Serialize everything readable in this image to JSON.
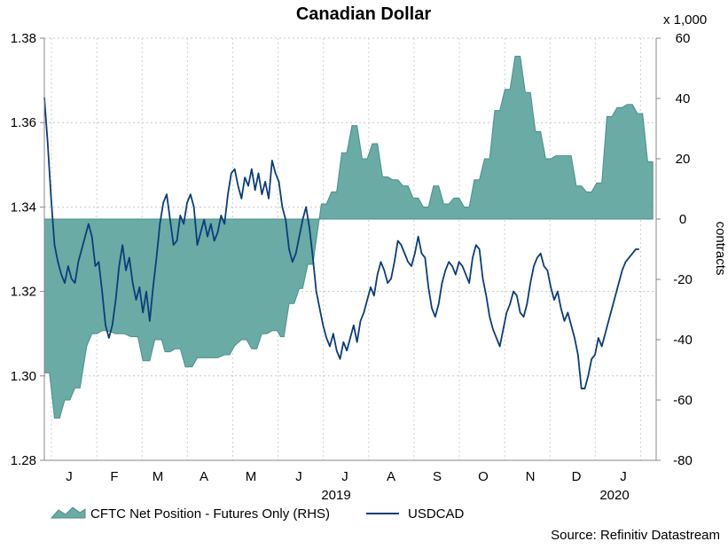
{
  "chart_data": {
    "type": "line+area",
    "title": "Canadian Dollar",
    "left_axis": {
      "ylim": [
        1.28,
        1.38
      ],
      "ticks": [
        "1.38",
        "1.36",
        "1.34",
        "1.32",
        "1.30",
        "1.28"
      ],
      "tick_values": [
        1.38,
        1.36,
        1.34,
        1.32,
        1.3,
        1.28
      ]
    },
    "right_axis": {
      "ylim": [
        -80,
        60
      ],
      "ticks": [
        "60",
        "40",
        "20",
        "0",
        "-20",
        "-40",
        "-60",
        "-80"
      ],
      "tick_values": [
        60,
        40,
        20,
        0,
        -20,
        -40,
        -60,
        -80
      ],
      "label": "contracts",
      "multiplier_label": "x 1,000"
    },
    "x_axis": {
      "months": [
        "J",
        "F",
        "M",
        "A",
        "M",
        "J",
        "J",
        "A",
        "S",
        "O",
        "N",
        "D",
        "J"
      ],
      "year_labels": [
        {
          "text": "2019",
          "under_month": 6
        },
        {
          "text": "2020",
          "under_month": 12
        }
      ],
      "range_months": [
        0,
        13
      ]
    },
    "grid": true,
    "series": [
      {
        "name": "CFTC Net Position - Futures Only (RHS)",
        "kind": "area",
        "axis": "right",
        "color": "#6aaba6",
        "edge_color": "#4a8f8a",
        "points": [
          [
            0,
            -51
          ],
          [
            0.15,
            -51
          ],
          [
            0.3,
            -66
          ],
          [
            0.45,
            -66
          ],
          [
            0.6,
            -60
          ],
          [
            0.75,
            -60
          ],
          [
            0.9,
            -56
          ],
          [
            1.05,
            -56
          ],
          [
            1.25,
            -42
          ],
          [
            1.4,
            -38
          ],
          [
            1.55,
            -38
          ],
          [
            1.7,
            -37
          ],
          [
            1.85,
            -37
          ],
          [
            2.1,
            -38
          ],
          [
            2.35,
            -38
          ],
          [
            2.55,
            -39
          ],
          [
            2.75,
            -39
          ],
          [
            2.9,
            -47
          ],
          [
            3.1,
            -47
          ],
          [
            3.25,
            -40
          ],
          [
            3.45,
            -40
          ],
          [
            3.55,
            -44
          ],
          [
            3.7,
            -44
          ],
          [
            3.85,
            -43
          ],
          [
            4.0,
            -43
          ],
          [
            4.15,
            -49
          ],
          [
            4.35,
            -49
          ],
          [
            4.5,
            -46
          ],
          [
            4.7,
            -46
          ],
          [
            4.9,
            -46
          ],
          [
            5.1,
            -46
          ],
          [
            5.3,
            -45
          ],
          [
            5.45,
            -45
          ],
          [
            5.6,
            -42
          ],
          [
            5.8,
            -40
          ],
          [
            5.95,
            -40
          ],
          [
            6.1,
            -43
          ],
          [
            6.25,
            -43
          ],
          [
            6.4,
            -38
          ],
          [
            6.55,
            -38
          ],
          [
            6.7,
            -37
          ],
          [
            6.85,
            -37
          ],
          [
            6.95,
            -39
          ],
          [
            7.05,
            -39
          ],
          [
            7.2,
            -28
          ],
          [
            7.35,
            -28
          ],
          [
            7.5,
            -23
          ],
          [
            7.6,
            -23
          ],
          [
            7.75,
            -15
          ],
          [
            7.9,
            -15
          ],
          [
            8.15,
            5
          ],
          [
            8.3,
            5
          ],
          [
            8.45,
            9
          ],
          [
            8.6,
            9
          ],
          [
            8.75,
            22
          ],
          [
            8.9,
            22
          ],
          [
            9.05,
            31
          ],
          [
            9.2,
            31
          ],
          [
            9.35,
            20
          ],
          [
            9.5,
            20
          ],
          [
            9.65,
            25
          ],
          [
            9.8,
            25
          ],
          [
            9.95,
            14
          ],
          [
            10.1,
            14
          ],
          [
            10.25,
            13
          ],
          [
            10.4,
            13
          ],
          [
            10.55,
            11
          ],
          [
            10.7,
            11
          ],
          [
            10.85,
            7
          ],
          [
            11.0,
            7
          ],
          [
            11.15,
            4
          ],
          [
            11.3,
            4
          ],
          [
            11.45,
            11
          ],
          [
            11.6,
            11
          ],
          [
            11.75,
            5
          ],
          [
            11.9,
            5
          ],
          [
            12.05,
            7
          ],
          [
            12.2,
            7
          ],
          [
            12.35,
            4
          ],
          [
            12.5,
            4
          ],
          [
            12.65,
            13
          ],
          [
            12.8,
            13
          ],
          [
            12.95,
            20
          ],
          [
            13.1,
            20
          ],
          [
            13.25,
            36
          ],
          [
            13.4,
            36
          ],
          [
            13.55,
            43
          ],
          [
            13.7,
            43
          ],
          [
            13.85,
            54
          ],
          [
            14.0,
            54
          ],
          [
            14.15,
            42
          ],
          [
            14.3,
            42
          ],
          [
            14.45,
            29
          ],
          [
            14.6,
            29
          ],
          [
            14.75,
            20
          ],
          [
            14.9,
            20
          ],
          [
            15.05,
            21
          ],
          [
            15.2,
            21
          ],
          [
            15.35,
            21
          ],
          [
            15.5,
            21
          ],
          [
            15.65,
            11
          ],
          [
            15.8,
            11
          ],
          [
            15.95,
            9
          ],
          [
            16.1,
            9
          ],
          [
            16.25,
            12
          ],
          [
            16.4,
            12
          ],
          [
            16.55,
            34
          ],
          [
            16.7,
            34
          ],
          [
            16.85,
            37
          ],
          [
            17.0,
            37
          ],
          [
            17.15,
            38
          ],
          [
            17.3,
            38
          ],
          [
            17.45,
            35
          ],
          [
            17.6,
            35
          ],
          [
            17.75,
            19
          ],
          [
            17.9,
            19
          ]
        ],
        "x_scale_note": "x in half-months from Jan 2019"
      },
      {
        "name": "USDCAD",
        "kind": "line",
        "axis": "left",
        "color": "#0b3d7a",
        "points": [
          [
            0,
            1.366
          ],
          [
            0.1,
            1.355
          ],
          [
            0.2,
            1.342
          ],
          [
            0.3,
            1.331
          ],
          [
            0.4,
            1.327
          ],
          [
            0.5,
            1.324
          ],
          [
            0.6,
            1.322
          ],
          [
            0.7,
            1.326
          ],
          [
            0.8,
            1.323
          ],
          [
            0.9,
            1.322
          ],
          [
            1.0,
            1.327
          ],
          [
            1.1,
            1.33
          ],
          [
            1.2,
            1.333
          ],
          [
            1.3,
            1.336
          ],
          [
            1.4,
            1.333
          ],
          [
            1.5,
            1.326
          ],
          [
            1.6,
            1.327
          ],
          [
            1.7,
            1.32
          ],
          [
            1.8,
            1.312
          ],
          [
            1.9,
            1.309
          ],
          [
            2.0,
            1.312
          ],
          [
            2.1,
            1.318
          ],
          [
            2.2,
            1.326
          ],
          [
            2.3,
            1.331
          ],
          [
            2.4,
            1.325
          ],
          [
            2.5,
            1.328
          ],
          [
            2.6,
            1.322
          ],
          [
            2.7,
            1.318
          ],
          [
            2.8,
            1.321
          ],
          [
            2.9,
            1.315
          ],
          [
            3.0,
            1.32
          ],
          [
            3.1,
            1.313
          ],
          [
            3.2,
            1.321
          ],
          [
            3.3,
            1.328
          ],
          [
            3.4,
            1.336
          ],
          [
            3.5,
            1.341
          ],
          [
            3.6,
            1.343
          ],
          [
            3.7,
            1.337
          ],
          [
            3.8,
            1.331
          ],
          [
            3.9,
            1.332
          ],
          [
            4.0,
            1.338
          ],
          [
            4.1,
            1.336
          ],
          [
            4.2,
            1.341
          ],
          [
            4.3,
            1.343
          ],
          [
            4.4,
            1.34
          ],
          [
            4.5,
            1.331
          ],
          [
            4.6,
            1.334
          ],
          [
            4.7,
            1.337
          ],
          [
            4.8,
            1.333
          ],
          [
            4.9,
            1.336
          ],
          [
            5.0,
            1.332
          ],
          [
            5.1,
            1.334
          ],
          [
            5.2,
            1.338
          ],
          [
            5.3,
            1.336
          ],
          [
            5.4,
            1.343
          ],
          [
            5.5,
            1.348
          ],
          [
            5.6,
            1.349
          ],
          [
            5.7,
            1.345
          ],
          [
            5.8,
            1.342
          ],
          [
            5.9,
            1.347
          ],
          [
            6.0,
            1.345
          ],
          [
            6.1,
            1.349
          ],
          [
            6.2,
            1.344
          ],
          [
            6.3,
            1.348
          ],
          [
            6.4,
            1.343
          ],
          [
            6.5,
            1.346
          ],
          [
            6.6,
            1.342
          ],
          [
            6.7,
            1.351
          ],
          [
            6.8,
            1.348
          ],
          [
            6.9,
            1.346
          ],
          [
            7.0,
            1.34
          ],
          [
            7.1,
            1.337
          ],
          [
            7.2,
            1.33
          ],
          [
            7.3,
            1.327
          ],
          [
            7.4,
            1.329
          ],
          [
            7.5,
            1.333
          ],
          [
            7.6,
            1.337
          ],
          [
            7.7,
            1.34
          ],
          [
            7.8,
            1.335
          ],
          [
            7.9,
            1.328
          ],
          [
            8.0,
            1.32
          ],
          [
            8.1,
            1.316
          ],
          [
            8.2,
            1.312
          ],
          [
            8.3,
            1.309
          ],
          [
            8.4,
            1.307
          ],
          [
            8.5,
            1.31
          ],
          [
            8.6,
            1.306
          ],
          [
            8.7,
            1.304
          ],
          [
            8.8,
            1.308
          ],
          [
            8.9,
            1.306
          ],
          [
            9.0,
            1.309
          ],
          [
            9.1,
            1.312
          ],
          [
            9.2,
            1.308
          ],
          [
            9.3,
            1.313
          ],
          [
            9.4,
            1.315
          ],
          [
            9.5,
            1.318
          ],
          [
            9.6,
            1.321
          ],
          [
            9.7,
            1.319
          ],
          [
            9.8,
            1.324
          ],
          [
            9.9,
            1.327
          ],
          [
            10.0,
            1.325
          ],
          [
            10.1,
            1.322
          ],
          [
            10.2,
            1.323
          ],
          [
            10.3,
            1.327
          ],
          [
            10.4,
            1.332
          ],
          [
            10.5,
            1.331
          ],
          [
            10.6,
            1.329
          ],
          [
            10.7,
            1.327
          ],
          [
            10.8,
            1.326
          ],
          [
            10.9,
            1.329
          ],
          [
            11.0,
            1.333
          ],
          [
            11.1,
            1.329
          ],
          [
            11.2,
            1.328
          ],
          [
            11.3,
            1.321
          ],
          [
            11.4,
            1.316
          ],
          [
            11.5,
            1.314
          ],
          [
            11.6,
            1.317
          ],
          [
            11.7,
            1.322
          ],
          [
            11.8,
            1.325
          ],
          [
            11.9,
            1.327
          ],
          [
            12.0,
            1.326
          ],
          [
            12.1,
            1.324
          ],
          [
            12.2,
            1.327
          ],
          [
            12.3,
            1.326
          ],
          [
            12.4,
            1.324
          ],
          [
            12.5,
            1.322
          ],
          [
            12.6,
            1.328
          ],
          [
            12.7,
            1.331
          ],
          [
            12.8,
            1.33
          ],
          [
            12.9,
            1.323
          ],
          [
            13.0,
            1.319
          ],
          [
            13.1,
            1.314
          ],
          [
            13.2,
            1.311
          ],
          [
            13.3,
            1.309
          ],
          [
            13.4,
            1.307
          ],
          [
            13.5,
            1.311
          ],
          [
            13.6,
            1.315
          ],
          [
            13.7,
            1.317
          ],
          [
            13.8,
            1.32
          ],
          [
            13.9,
            1.319
          ],
          [
            14.0,
            1.315
          ],
          [
            14.1,
            1.314
          ],
          [
            14.2,
            1.317
          ],
          [
            14.3,
            1.322
          ],
          [
            14.4,
            1.326
          ],
          [
            14.5,
            1.328
          ],
          [
            14.6,
            1.329
          ],
          [
            14.7,
            1.326
          ],
          [
            14.8,
            1.325
          ],
          [
            14.9,
            1.321
          ],
          [
            15.0,
            1.318
          ],
          [
            15.1,
            1.32
          ],
          [
            15.2,
            1.316
          ],
          [
            15.3,
            1.313
          ],
          [
            15.4,
            1.315
          ],
          [
            15.5,
            1.312
          ],
          [
            15.6,
            1.309
          ],
          [
            15.7,
            1.305
          ],
          [
            15.8,
            1.297
          ],
          [
            15.9,
            1.297
          ],
          [
            16.0,
            1.3
          ],
          [
            16.1,
            1.304
          ],
          [
            16.2,
            1.305
          ],
          [
            16.3,
            1.309
          ],
          [
            16.4,
            1.307
          ],
          [
            16.5,
            1.31
          ],
          [
            16.6,
            1.313
          ],
          [
            16.7,
            1.316
          ],
          [
            16.8,
            1.319
          ],
          [
            16.9,
            1.322
          ],
          [
            17.0,
            1.325
          ],
          [
            17.1,
            1.327
          ],
          [
            17.2,
            1.328
          ],
          [
            17.3,
            1.329
          ],
          [
            17.4,
            1.33
          ],
          [
            17.5,
            1.33
          ]
        ]
      }
    ],
    "legend": {
      "placement": "bottom-left",
      "items": [
        {
          "label": "CFTC Net Position - Futures Only (RHS)",
          "kind": "area",
          "color": "#6aaba6"
        },
        {
          "label": "USDCAD",
          "kind": "line",
          "color": "#0b3d7a"
        }
      ]
    },
    "source": "Source: Refinitiv Datastream"
  }
}
